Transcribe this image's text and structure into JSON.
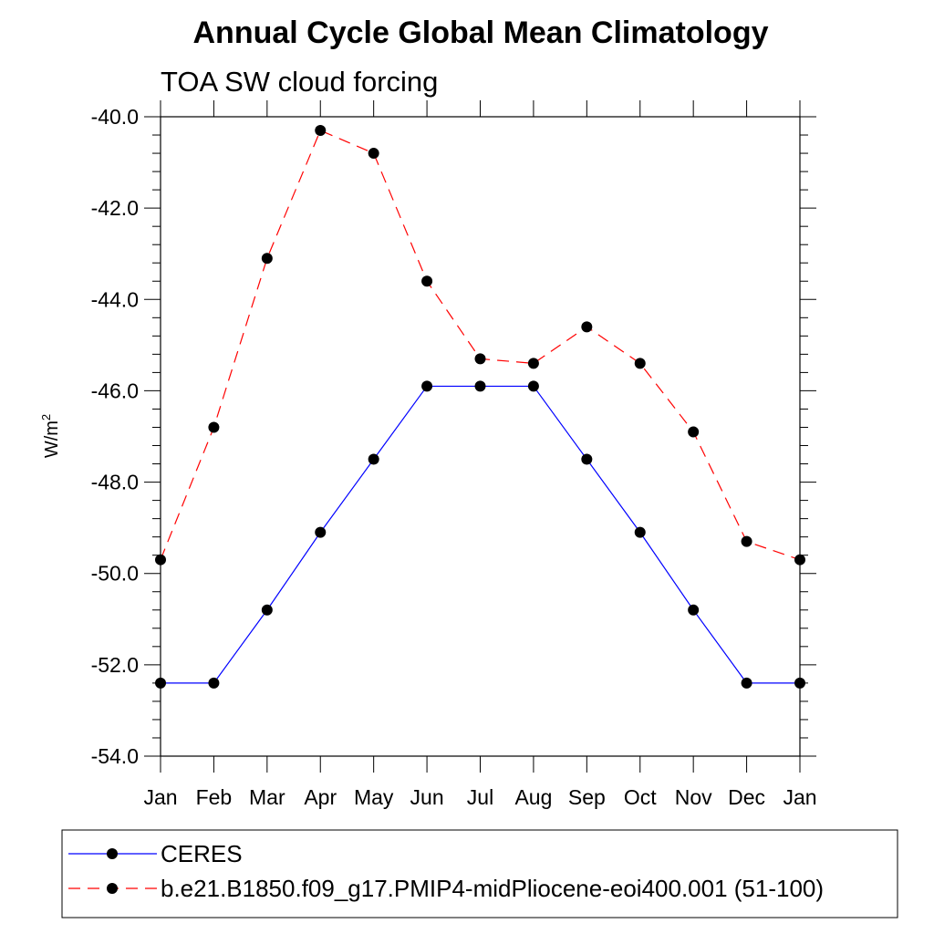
{
  "chart_data": {
    "type": "line",
    "title": "Annual Cycle Global Mean Climatology",
    "subtitle": "TOA SW cloud forcing",
    "xlabel": "",
    "ylabel": "W/m",
    "ylabel_sup": "2",
    "ylim": [
      -54.0,
      -40.0
    ],
    "yticks": [
      "-40.0",
      "-42.0",
      "-44.0",
      "-46.0",
      "-48.0",
      "-50.0",
      "-52.0",
      "-54.0"
    ],
    "ytick_values": [
      -40,
      -42,
      -44,
      -46,
      -48,
      -50,
      -52,
      -54
    ],
    "categories": [
      "Jan",
      "Feb",
      "Mar",
      "Apr",
      "May",
      "Jun",
      "Jul",
      "Aug",
      "Sep",
      "Oct",
      "Nov",
      "Dec",
      "Jan"
    ],
    "grid": false,
    "legend_position": "bottom",
    "series": [
      {
        "name": "CERES",
        "color": "#0000ff",
        "line_style": "solid",
        "marker": "circle",
        "values": [
          -52.4,
          -52.4,
          -50.8,
          -49.1,
          -47.5,
          -45.9,
          -45.9,
          -45.9,
          -47.5,
          -49.1,
          -50.8,
          -52.4,
          -52.4
        ]
      },
      {
        "name": "b.e21.B1850.f09_g17.PMIP4-midPliocene-eoi400.001 (51-100)",
        "color": "#ff0000",
        "line_style": "dashed",
        "marker": "circle",
        "values": [
          -49.7,
          -46.8,
          -43.1,
          -40.3,
          -40.8,
          -43.6,
          -45.3,
          -45.4,
          -44.6,
          -45.4,
          -46.9,
          -49.3,
          -49.7
        ]
      }
    ]
  }
}
